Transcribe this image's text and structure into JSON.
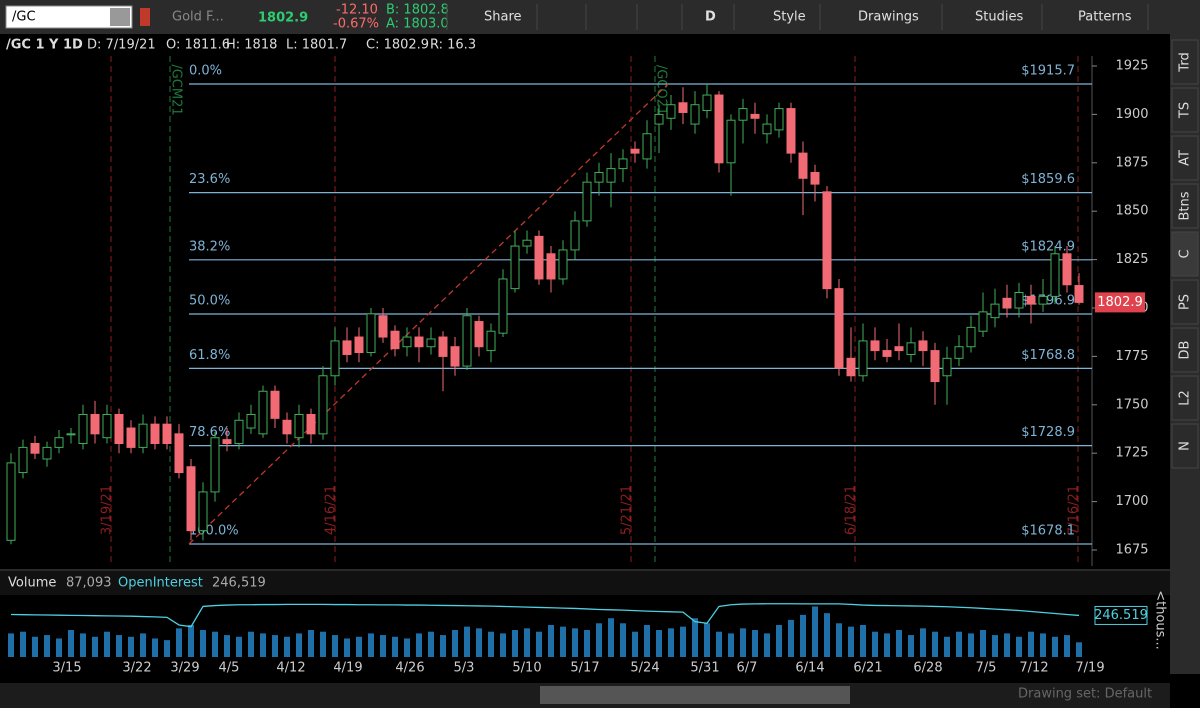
{
  "toolbar": {
    "symbol": "/GC",
    "description": "Gold F...",
    "last": "1802.9",
    "change": "-12.10",
    "change_pct": "-0.67%",
    "bid": "B: 1802.8",
    "ask": "A: 1803.0",
    "buttons": [
      "Share",
      "D",
      "Style",
      "Drawings",
      "Studies",
      "Patterns"
    ]
  },
  "header": {
    "title": "/GC 1 Y 1D",
    "date": "D: 7/19/21",
    "open": "O: 1811.6",
    "high": "H: 1818",
    "low": "L: 1801.7",
    "close": "C: 1802.9",
    "range": "R: 16.3"
  },
  "sidebar": [
    "Trd",
    "TS",
    "AT",
    "Btns",
    "C",
    "PS",
    "DB",
    "L2",
    "N"
  ],
  "chart_data": {
    "type": "candlestick",
    "ylim": [
      1675,
      1925
    ],
    "yticks": [
      1675,
      1700,
      1725,
      1750,
      1775,
      1800,
      1825,
      1850,
      1875,
      1900,
      1925
    ],
    "last_price": "1802.9",
    "x_labels": [
      "3/15",
      "3/22",
      "3/29",
      "4/5",
      "4/12",
      "4/19",
      "4/26",
      "5/3",
      "5/10",
      "5/17",
      "5/24",
      "5/31",
      "6/7",
      "6/14",
      "6/21",
      "6/28",
      "7/5",
      "7/12",
      "7/19"
    ],
    "fib_levels": [
      {
        "label": "0.0%",
        "value": 1915.7,
        "value_label": "$1915.7"
      },
      {
        "label": "23.6%",
        "value": 1859.6,
        "value_label": "$1859.6"
      },
      {
        "label": "38.2%",
        "value": 1824.9,
        "value_label": "$1824.9"
      },
      {
        "label": "50.0%",
        "value": 1796.9,
        "value_label": "$1796.9"
      },
      {
        "label": "61.8%",
        "value": 1768.8,
        "value_label": "$1768.8"
      },
      {
        "label": "78.6%",
        "value": 1728.9,
        "value_label": "$1728.9"
      },
      {
        "label": "100.0%",
        "value": 1678.1,
        "value_label": "$1678.1"
      }
    ],
    "expiry_markers": [
      "3/19/21",
      "4/16/21",
      "5/21/21",
      "6/18/21",
      "7/16/21"
    ],
    "contract_markers": [
      "/GCM21",
      "/GCQ21"
    ],
    "candles": [
      [
        1680,
        1725,
        1678,
        1720
      ],
      [
        1715,
        1732,
        1712,
        1728
      ],
      [
        1730,
        1734,
        1722,
        1725
      ],
      [
        1722,
        1731,
        1718,
        1728
      ],
      [
        1728,
        1737,
        1725,
        1733
      ],
      [
        1735,
        1738,
        1730,
        1735
      ],
      [
        1730,
        1750,
        1727,
        1745
      ],
      [
        1745,
        1752,
        1730,
        1735
      ],
      [
        1733,
        1750,
        1730,
        1745
      ],
      [
        1745,
        1748,
        1725,
        1730
      ],
      [
        1738,
        1742,
        1725,
        1728
      ],
      [
        1728,
        1745,
        1725,
        1740
      ],
      [
        1740,
        1744,
        1727,
        1730
      ],
      [
        1740,
        1744,
        1727,
        1730
      ],
      [
        1735,
        1740,
        1712,
        1715
      ],
      [
        1718,
        1722,
        1680,
        1685
      ],
      [
        1685,
        1710,
        1680,
        1705
      ],
      [
        1705,
        1736,
        1700,
        1733
      ],
      [
        1732,
        1738,
        1726,
        1730
      ],
      [
        1730,
        1746,
        1727,
        1742
      ],
      [
        1738,
        1750,
        1735,
        1745
      ],
      [
        1735,
        1760,
        1733,
        1757
      ],
      [
        1757,
        1760,
        1738,
        1743
      ],
      [
        1742,
        1746,
        1730,
        1735
      ],
      [
        1733,
        1750,
        1728,
        1745
      ],
      [
        1745,
        1748,
        1730,
        1735
      ],
      [
        1735,
        1770,
        1732,
        1765
      ],
      [
        1765,
        1790,
        1760,
        1783
      ],
      [
        1783,
        1790,
        1772,
        1776
      ],
      [
        1785,
        1790,
        1772,
        1777
      ],
      [
        1777,
        1800,
        1775,
        1797
      ],
      [
        1796,
        1800,
        1782,
        1785
      ],
      [
        1788,
        1791,
        1775,
        1779
      ],
      [
        1780,
        1790,
        1775,
        1785
      ],
      [
        1785,
        1790,
        1772,
        1780
      ],
      [
        1780,
        1790,
        1776,
        1784
      ],
      [
        1785,
        1788,
        1757,
        1775
      ],
      [
        1780,
        1785,
        1765,
        1770
      ],
      [
        1770,
        1800,
        1768,
        1796
      ],
      [
        1793,
        1796,
        1775,
        1780
      ],
      [
        1778,
        1792,
        1772,
        1788
      ],
      [
        1787,
        1820,
        1785,
        1815
      ],
      [
        1810,
        1840,
        1808,
        1832
      ],
      [
        1832,
        1840,
        1828,
        1835
      ],
      [
        1837,
        1840,
        1812,
        1815
      ],
      [
        1828,
        1832,
        1808,
        1815
      ],
      [
        1815,
        1835,
        1812,
        1830
      ],
      [
        1830,
        1850,
        1825,
        1845
      ],
      [
        1845,
        1870,
        1842,
        1865
      ],
      [
        1865,
        1875,
        1858,
        1870
      ],
      [
        1865,
        1880,
        1852,
        1872
      ],
      [
        1872,
        1882,
        1865,
        1877
      ],
      [
        1882,
        1886,
        1875,
        1880
      ],
      [
        1877,
        1897,
        1872,
        1890
      ],
      [
        1895,
        1905,
        1880,
        1900
      ],
      [
        1898,
        1910,
        1892,
        1905
      ],
      [
        1906,
        1914,
        1895,
        1901
      ],
      [
        1895,
        1912,
        1890,
        1905
      ],
      [
        1902,
        1916,
        1898,
        1910
      ],
      [
        1910,
        1912,
        1870,
        1875
      ],
      [
        1875,
        1900,
        1858,
        1897
      ],
      [
        1897,
        1908,
        1885,
        1903
      ],
      [
        1900,
        1906,
        1890,
        1898
      ],
      [
        1890,
        1900,
        1885,
        1895
      ],
      [
        1892,
        1906,
        1888,
        1903
      ],
      [
        1903,
        1906,
        1875,
        1880
      ],
      [
        1880,
        1886,
        1848,
        1867
      ],
      [
        1870,
        1874,
        1855,
        1864
      ],
      [
        1860,
        1863,
        1805,
        1810
      ],
      [
        1810,
        1815,
        1765,
        1769
      ],
      [
        1774,
        1790,
        1762,
        1765
      ],
      [
        1765,
        1792,
        1762,
        1783
      ],
      [
        1783,
        1790,
        1773,
        1778
      ],
      [
        1778,
        1784,
        1772,
        1775
      ],
      [
        1780,
        1792,
        1773,
        1778
      ],
      [
        1776,
        1790,
        1772,
        1782
      ],
      [
        1783,
        1788,
        1770,
        1778
      ],
      [
        1778,
        1782,
        1750,
        1762
      ],
      [
        1765,
        1780,
        1750,
        1774
      ],
      [
        1774,
        1786,
        1770,
        1780
      ],
      [
        1780,
        1796,
        1777,
        1790
      ],
      [
        1788,
        1808,
        1785,
        1798
      ],
      [
        1795,
        1810,
        1790,
        1802
      ],
      [
        1805,
        1812,
        1795,
        1800
      ],
      [
        1800,
        1813,
        1795,
        1808
      ],
      [
        1806,
        1812,
        1792,
        1802
      ],
      [
        1802,
        1815,
        1798,
        1806
      ],
      [
        1806,
        1832,
        1802,
        1828
      ],
      [
        1828,
        1832,
        1808,
        1812
      ],
      [
        1811.6,
        1818,
        1801.7,
        1802.9
      ]
    ],
    "volume_panel": {
      "ylim": [
        0,
        350
      ],
      "volume_label": "Volume",
      "volume_value": "87,093",
      "oi_label": "OpenInterest",
      "oi_value": "246,519",
      "oi_axis_label": "246.519",
      "unit_label": "<thous...",
      "volume": [
        140,
        150,
        120,
        130,
        110,
        160,
        140,
        120,
        150,
        130,
        120,
        140,
        110,
        100,
        170,
        190,
        160,
        150,
        130,
        120,
        150,
        140,
        130,
        120,
        140,
        160,
        150,
        130,
        110,
        120,
        140,
        130,
        120,
        110,
        140,
        150,
        130,
        160,
        180,
        170,
        150,
        140,
        160,
        170,
        150,
        190,
        180,
        170,
        160,
        200,
        230,
        200,
        150,
        190,
        160,
        170,
        180,
        230,
        200,
        150,
        140,
        170,
        160,
        140,
        190,
        220,
        250,
        300,
        260,
        200,
        180,
        190,
        150,
        140,
        160,
        130,
        170,
        150,
        120,
        150,
        140,
        160,
        130,
        140,
        120,
        150,
        140,
        120,
        130,
        87
      ],
      "open_interest": [
        252,
        251,
        250,
        249,
        248,
        247,
        246,
        245,
        244,
        243,
        242,
        240,
        238,
        235,
        190,
        180,
        300,
        305,
        308,
        310,
        310,
        311,
        311,
        312,
        312,
        312,
        312,
        311,
        311,
        310,
        310,
        309,
        309,
        308,
        308,
        307,
        306,
        305,
        304,
        303,
        302,
        300,
        298,
        296,
        294,
        292,
        290,
        288,
        285,
        282,
        280,
        278,
        275,
        272,
        270,
        268,
        266,
        210,
        200,
        300,
        310,
        314,
        315,
        316,
        316,
        316,
        315,
        315,
        315,
        315,
        312,
        308,
        306,
        305,
        304,
        303,
        302,
        300,
        298,
        295,
        292,
        288,
        284,
        280,
        276,
        270,
        264,
        258,
        252,
        246.519
      ]
    }
  },
  "footer": {
    "drawing_set": "Drawing set: Default"
  }
}
